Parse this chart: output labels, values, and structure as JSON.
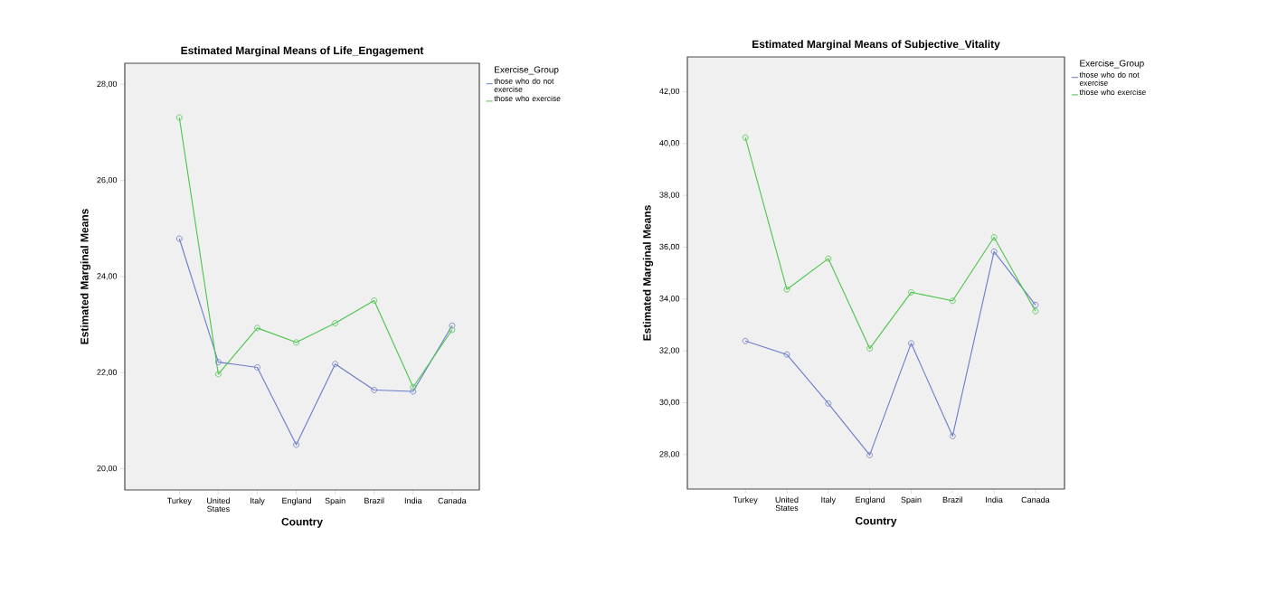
{
  "chart_data": [
    {
      "type": "line",
      "title": "Estimated Marginal Means of Life_Engagement",
      "xlabel": "Country",
      "ylabel": "Estimated Marginal Means",
      "legend_title": "Exercise_Group",
      "legend": "right",
      "marker": "circle",
      "grid": false,
      "categories": [
        "Turkey",
        "United States",
        "Italy",
        "England",
        "Spain",
        "Brazil",
        "India",
        "Canada"
      ],
      "ylim": [
        19.56,
        28.44
      ],
      "yticks": [
        {
          "value": 20,
          "label": "20,00"
        },
        {
          "value": 22,
          "label": "22,00"
        },
        {
          "value": 24,
          "label": "24,00"
        },
        {
          "value": 26,
          "label": "26,00"
        },
        {
          "value": 28,
          "label": "28,00"
        }
      ],
      "series": [
        {
          "name": "those who do not exercise",
          "color": "#6a7bc8",
          "values": [
            24.79,
            22.22,
            22.11,
            20.5,
            22.18,
            21.64,
            21.61,
            22.98
          ]
        },
        {
          "name": "those who exercise",
          "color": "#4cc44c",
          "values": [
            27.31,
            21.97,
            22.93,
            22.63,
            23.03,
            23.5,
            21.7,
            22.89
          ]
        }
      ]
    },
    {
      "type": "line",
      "title": "Estimated Marginal Means of Subjective_Vitality",
      "xlabel": "Country",
      "ylabel": "Estimated Marginal Means",
      "legend_title": "Exercise_Group",
      "legend": "right",
      "marker": "circle",
      "grid": false,
      "categories": [
        "Turkey",
        "United States",
        "Italy",
        "England",
        "Spain",
        "Brazil",
        "India",
        "Canada"
      ],
      "ylim": [
        26.67,
        43.34
      ],
      "yticks": [
        {
          "value": 28,
          "label": "28,00"
        },
        {
          "value": 30,
          "label": "30,00"
        },
        {
          "value": 32,
          "label": "32,00"
        },
        {
          "value": 34,
          "label": "34,00"
        },
        {
          "value": 36,
          "label": "36,00"
        },
        {
          "value": 38,
          "label": "38,00"
        },
        {
          "value": 40,
          "label": "40,00"
        },
        {
          "value": 42,
          "label": "42,00"
        }
      ],
      "series": [
        {
          "name": "those who do not exercise",
          "color": "#6a7bc8",
          "values": [
            32.38,
            31.86,
            29.97,
            27.98,
            32.29,
            28.71,
            35.83,
            33.77
          ]
        },
        {
          "name": "those who exercise",
          "color": "#4cc44c",
          "values": [
            40.23,
            34.37,
            35.56,
            32.09,
            34.26,
            33.93,
            36.38,
            33.53
          ]
        }
      ]
    }
  ]
}
